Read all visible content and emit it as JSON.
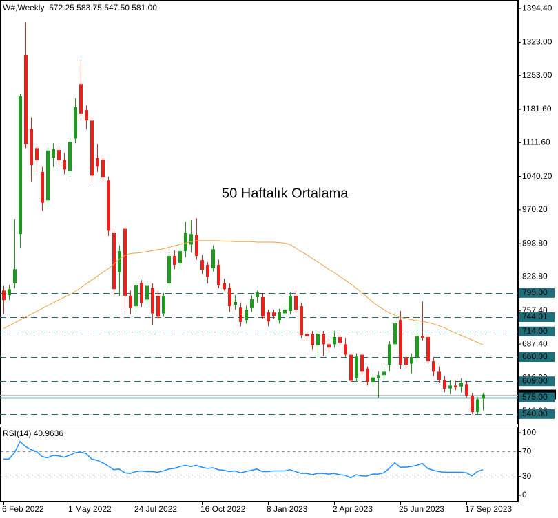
{
  "chart_data": {
    "type": "candlestick",
    "title": "W#,Weekly  572.25 583.75 547.50 581.00",
    "annotation": "50 Haftalık Ortalama",
    "categories": [
      "6 Feb 2022",
      null,
      null,
      null,
      null,
      null,
      null,
      null,
      null,
      null,
      null,
      null,
      "1 May 2022",
      null,
      null,
      null,
      null,
      null,
      null,
      null,
      null,
      null,
      null,
      null,
      "24 Jul 2022",
      null,
      null,
      null,
      null,
      null,
      null,
      null,
      null,
      null,
      null,
      null,
      "16 Oct 2022",
      null,
      null,
      null,
      null,
      null,
      null,
      null,
      null,
      null,
      null,
      null,
      "8 Jan 2023",
      null,
      null,
      null,
      null,
      null,
      null,
      null,
      null,
      null,
      null,
      null,
      "2 Apr 2023",
      null,
      null,
      null,
      null,
      null,
      null,
      null,
      null,
      null,
      null,
      null,
      "25 Jun 2023",
      null,
      null,
      null,
      null,
      null,
      null,
      null,
      null,
      null,
      null,
      null,
      "17 Sep 2023",
      null,
      null,
      null
    ],
    "open": [
      800,
      790,
      815,
      919,
      1296,
      1140,
      1100,
      1050,
      990,
      1080,
      1096,
      1075,
      1052,
      1120,
      1235,
      1180,
      1158,
      1079,
      1076,
      1032,
      922,
      839,
      930,
      789,
      767,
      816,
      781,
      806,
      789,
      752,
      815,
      873,
      858,
      883,
      897,
      917,
      864,
      854,
      847,
      854,
      815,
      806,
      770,
      764,
      738,
      763,
      786,
      786,
      754,
      754,
      738,
      752,
      757,
      789,
      767,
      709,
      709,
      685,
      709,
      687,
      687,
      702,
      687,
      665,
      615,
      665,
      636,
      607,
      615,
      622,
      644,
      687,
      738,
      658,
      646,
      660,
      705,
      702,
      651,
      629,
      612,
      594,
      600,
      598,
      603,
      578,
      544,
      572.25
    ],
    "high": [
      810,
      812,
      950,
      1215,
      1365,
      1165,
      1110,
      1060,
      1100,
      1110,
      1105,
      1090,
      1120,
      1205,
      1287,
      1190,
      1165,
      1108,
      1085,
      1040,
      930,
      895,
      935,
      800,
      820,
      822,
      820,
      815,
      800,
      795,
      880,
      885,
      895,
      945,
      948,
      952,
      875,
      860,
      895,
      865,
      825,
      815,
      790,
      775,
      768,
      790,
      800,
      795,
      760,
      760,
      762,
      768,
      796,
      800,
      775,
      712,
      715,
      715,
      715,
      698,
      715,
      710,
      700,
      670,
      668,
      670,
      640,
      625,
      630,
      640,
      693,
      752,
      757,
      665,
      668,
      745,
      777,
      710,
      660,
      640,
      620,
      612,
      610,
      615,
      608,
      584,
      576,
      583.75
    ],
    "low": [
      750,
      780,
      805,
      890,
      1100,
      1030,
      1050,
      968,
      975,
      1060,
      1060,
      1045,
      1040,
      1110,
      1160,
      1140,
      1028,
      1050,
      1030,
      915,
      790,
      789,
      760,
      750,
      755,
      765,
      770,
      728,
      742,
      745,
      805,
      845,
      845,
      870,
      880,
      865,
      835,
      815,
      840,
      805,
      800,
      755,
      760,
      725,
      730,
      755,
      775,
      740,
      725,
      740,
      730,
      745,
      750,
      752,
      700,
      695,
      675,
      660,
      662,
      670,
      680,
      682,
      660,
      605,
      608,
      622,
      600,
      600,
      573,
      612,
      630,
      680,
      635,
      636,
      625,
      650,
      695,
      645,
      620,
      605,
      586,
      582,
      590,
      585,
      575,
      540,
      540,
      547.5
    ],
    "close": [
      780,
      803,
      845,
      1209,
      1108,
      1064,
      1075,
      985,
      1095,
      1098,
      1075,
      1055,
      1113,
      1186,
      1173,
      1158,
      1042,
      1061,
      1038,
      926,
      803,
      883,
      789,
      763,
      811,
      774,
      810,
      752,
      745,
      789,
      873,
      854,
      883,
      922,
      919,
      873,
      844,
      829,
      887,
      811,
      803,
      767,
      776,
      734,
      760,
      782,
      796,
      745,
      735,
      746,
      754,
      760,
      789,
      760,
      706,
      704,
      685,
      709,
      687,
      680,
      702,
      690,
      665,
      610,
      661,
      629,
      607,
      617,
      622,
      629,
      687,
      731,
      644,
      644,
      660,
      704,
      700,
      651,
      629,
      612,
      593,
      600,
      596,
      605,
      579,
      544,
      571,
      581
    ],
    "up_color": "#1f9a1f",
    "down_color": "#e8221c",
    "ma": {
      "values": [
        720,
        726,
        732,
        738,
        744,
        750,
        756,
        762,
        768,
        774,
        780,
        786,
        791,
        798,
        806,
        814,
        822,
        830,
        838,
        846,
        855,
        866,
        874,
        878,
        879,
        880,
        882,
        884,
        886,
        888,
        891,
        894,
        897,
        900,
        903,
        905,
        905,
        905,
        905,
        905,
        904,
        904,
        903,
        903,
        903,
        903,
        902,
        902,
        902,
        902,
        901,
        900,
        897,
        890,
        882,
        876,
        868,
        860,
        853,
        845,
        838,
        830,
        822,
        814,
        805,
        796,
        786,
        776,
        767,
        760,
        753,
        748,
        744,
        741,
        739,
        737,
        735,
        733,
        730,
        726,
        722,
        716,
        711,
        706,
        701,
        696,
        691,
        686
      ],
      "color": "#f0a040"
    },
    "ylim": [
      518,
      1412
    ],
    "yticks": [
      {
        "value": 1394.4,
        "label": "1394.40"
      },
      {
        "value": 1323,
        "label": "1323.00"
      },
      {
        "value": 1253,
        "label": "1253.00"
      },
      {
        "value": 1181.6,
        "label": "1181.60"
      },
      {
        "value": 1111.6,
        "label": "1111.60"
      },
      {
        "value": 1040.2,
        "label": "1040.20"
      },
      {
        "value": 970.2,
        "label": "970.20"
      },
      {
        "value": 898.8,
        "label": "898.80"
      },
      {
        "value": 828.8,
        "label": "828.80"
      },
      {
        "value": 757.4,
        "label": "757.40"
      },
      {
        "value": 687.4,
        "label": "687.40"
      },
      {
        "value": 616,
        "label": "616.00"
      },
      {
        "value": 546,
        "label": "546.00"
      }
    ],
    "current": {
      "value": 581,
      "label": "581.00"
    },
    "levels": [
      {
        "value": 795,
        "label": "795.00",
        "dash": true
      },
      {
        "value": 744.01,
        "label": "744.01",
        "dash": true
      },
      {
        "value": 714,
        "label": "714.00",
        "dash": true
      },
      {
        "value": 660,
        "label": "660.00",
        "dash": true
      },
      {
        "value": 609,
        "label": "609.00",
        "dash": true
      },
      {
        "value": 575,
        "label": "575.00",
        "dash": false
      },
      {
        "value": 540,
        "label": "540.00",
        "dash": true
      }
    ],
    "level_color": "#1f6f7a",
    "rsi": {
      "title": "RSI(14) 40.9636",
      "values": [
        58,
        58,
        68,
        86,
        78,
        73,
        70,
        62,
        60,
        64,
        63,
        61,
        64,
        68,
        69,
        67,
        58,
        56,
        52,
        47,
        41,
        42,
        36,
        35,
        38,
        39,
        38,
        38,
        37,
        39,
        42,
        43,
        46,
        48,
        46,
        48,
        45,
        43,
        44,
        41,
        40,
        38,
        39,
        36,
        38,
        40,
        42,
        38,
        38,
        39,
        39,
        39,
        41,
        38,
        35,
        35,
        33,
        35,
        35,
        34,
        35,
        33,
        32,
        28,
        33,
        31,
        31,
        34,
        34,
        36,
        43,
        52,
        45,
        45,
        46,
        48,
        51,
        43,
        40,
        38,
        37,
        37,
        37,
        37,
        36,
        31,
        38,
        40.9636
      ],
      "color": "#1e90ff",
      "ylim": [
        -11,
        110
      ],
      "yticks": [
        100,
        70,
        30,
        0
      ],
      "levels": [
        70,
        30
      ]
    }
  }
}
